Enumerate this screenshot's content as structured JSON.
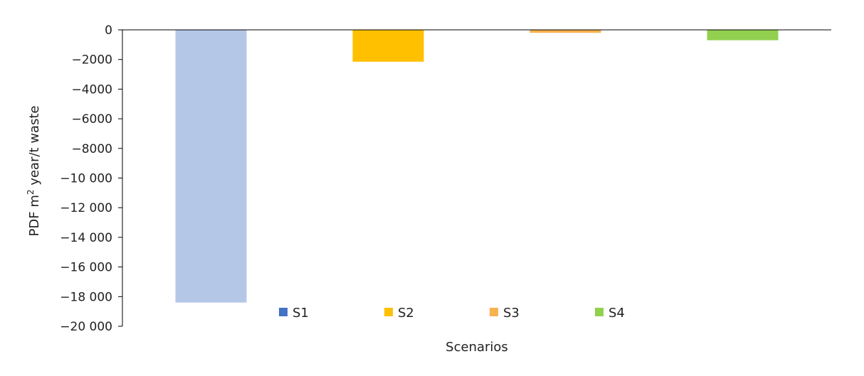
{
  "chart_data": {
    "type": "bar",
    "categories": [
      "S1",
      "S2",
      "S3",
      "S4"
    ],
    "values": [
      -18400,
      -2150,
      -200,
      -700
    ],
    "ylabel_main": "PDF m",
    "ylabel_sup": "2",
    "ylabel_rest": " year/t waste",
    "xlabel": "Scenarios",
    "ylim": [
      -20000,
      0
    ],
    "yticks": [
      0,
      -2000,
      -4000,
      -6000,
      -8000,
      -10000,
      -12000,
      -14000,
      -16000,
      -18000,
      -20000
    ],
    "ytick_labels": [
      "0",
      "−2000",
      "−4000",
      "−6000",
      "−8000",
      "−10 000",
      "−12 000",
      "−14 000",
      "−16 000",
      "−18 000",
      "−20 000"
    ],
    "bar_colors": [
      "#b4c7e7",
      "#ffc000",
      "#f8b24e",
      "#92d050"
    ],
    "legend": [
      {
        "label": "S1",
        "color": "#4472c4"
      },
      {
        "label": "S2",
        "color": "#ffc000"
      },
      {
        "label": "S3",
        "color": "#f8b24e"
      },
      {
        "label": "S4",
        "color": "#92d050"
      }
    ],
    "legend_position": "bottom-inside",
    "grid": false
  }
}
